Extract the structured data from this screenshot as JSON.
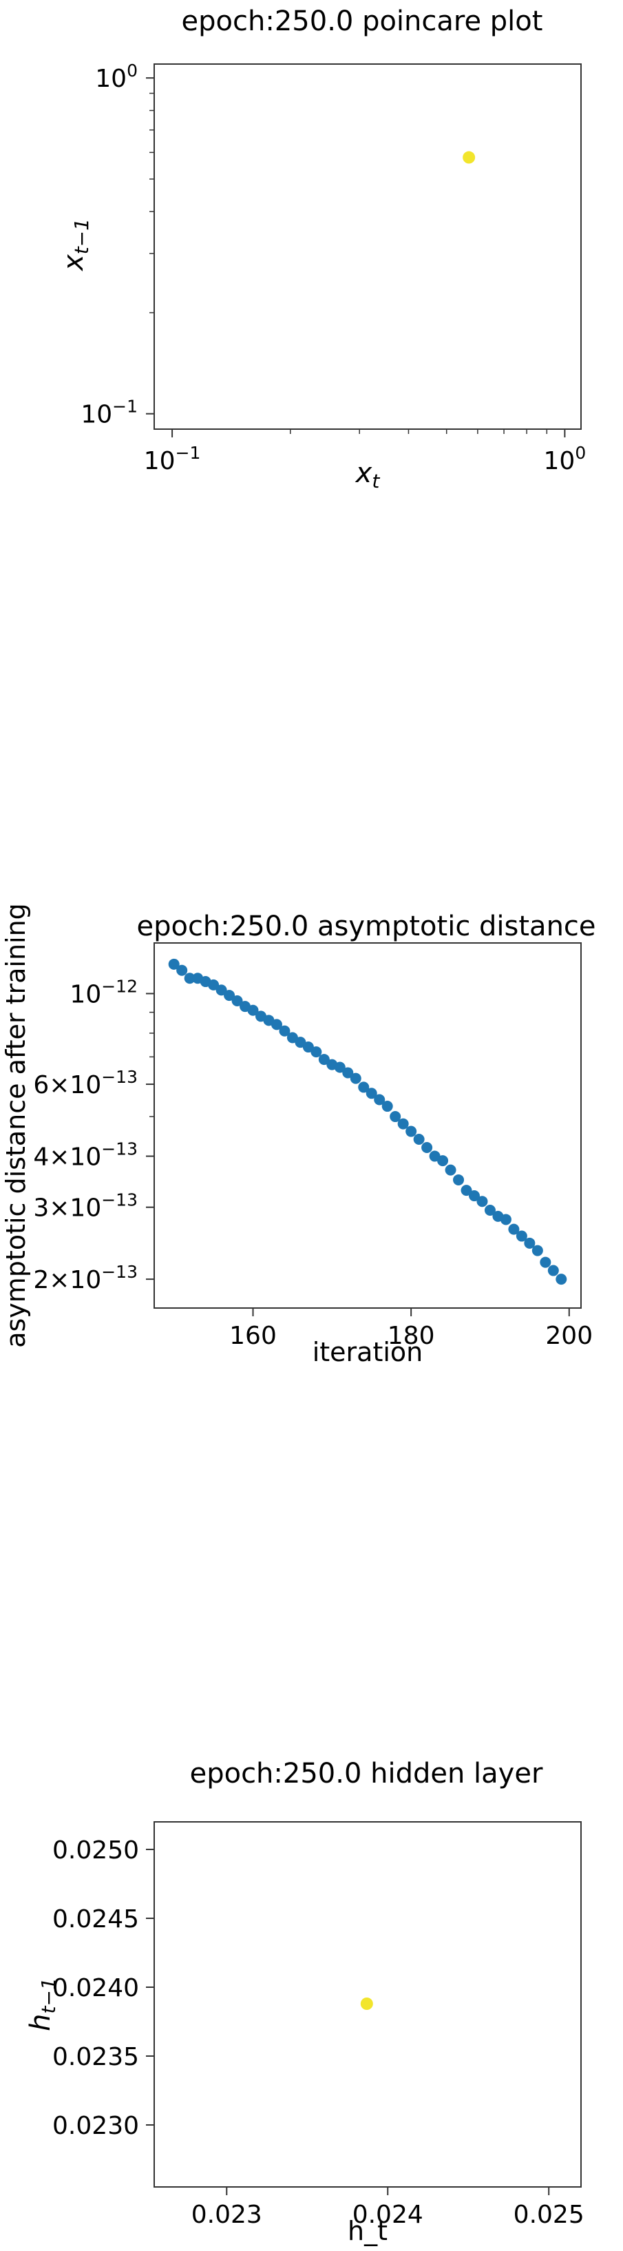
{
  "chart_data": [
    {
      "type": "scatter",
      "title": "epoch:250.0 poincare plot",
      "xlabel": "x_t",
      "ylabel": "x_{t−1}",
      "xscale": "log",
      "yscale": "log",
      "xlim": [
        0.09,
        1.1
      ],
      "ylim": [
        0.09,
        1.1
      ],
      "xticks": [
        {
          "value": 0.1,
          "base": "10",
          "exp": "−1"
        },
        {
          "value": 1.0,
          "base": "10",
          "exp": "0"
        }
      ],
      "yticks": [
        {
          "value": 0.1,
          "base": "10",
          "exp": "−1"
        },
        {
          "value": 1.0,
          "base": "10",
          "exp": "0"
        }
      ],
      "marker_color": "#f2e52c",
      "points": [
        {
          "x": 0.57,
          "y": 0.58
        }
      ]
    },
    {
      "type": "scatter",
      "title": "epoch:250.0 asymptotic distance",
      "xlabel": "iteration",
      "ylabel": "asymptotic distance after training",
      "yscale": "log",
      "xlim": [
        147.5,
        201.5
      ],
      "ylim": [
        1.7e-13,
        1.33e-12
      ],
      "xticks": [
        {
          "value": 160,
          "label": "160"
        },
        {
          "value": 180,
          "label": "180"
        },
        {
          "value": 200,
          "label": "200"
        }
      ],
      "yticks": [
        {
          "value": 1e-12,
          "coef": "",
          "exp": "−12"
        },
        {
          "value": 6e-13,
          "coef": "6×",
          "exp": "−13"
        },
        {
          "value": 4e-13,
          "coef": "4×",
          "exp": "−13"
        },
        {
          "value": 3e-13,
          "coef": "3×",
          "exp": "−13"
        },
        {
          "value": 2e-13,
          "coef": "2×",
          "exp": "−13"
        }
      ],
      "marker_color": "#1f77b4",
      "x": [
        150,
        151,
        152,
        153,
        154,
        155,
        156,
        157,
        158,
        159,
        160,
        161,
        162,
        163,
        164,
        165,
        166,
        167,
        168,
        169,
        170,
        171,
        172,
        173,
        174,
        175,
        176,
        177,
        178,
        179,
        180,
        181,
        182,
        183,
        184,
        185,
        186,
        187,
        188,
        189,
        190,
        191,
        192,
        193,
        194,
        195,
        196,
        197,
        198,
        199
      ],
      "y": [
        1.18e-12,
        1.14e-12,
        1.09e-12,
        1.09e-12,
        1.07e-12,
        1.05e-12,
        1.02e-12,
        9.9e-13,
        9.6e-13,
        9.3e-13,
        9.1e-13,
        8.8e-13,
        8.6e-13,
        8.4e-13,
        8.1e-13,
        7.8e-13,
        7.6e-13,
        7.4e-13,
        7.2e-13,
        6.9e-13,
        6.7e-13,
        6.6e-13,
        6.4e-13,
        6.2e-13,
        5.9e-13,
        5.7e-13,
        5.5e-13,
        5.3e-13,
        5e-13,
        4.8e-13,
        4.6e-13,
        4.4e-13,
        4.2e-13,
        4e-13,
        3.9e-13,
        3.7e-13,
        3.5e-13,
        3.3e-13,
        3.2e-13,
        3.1e-13,
        2.95e-13,
        2.85e-13,
        2.8e-13,
        2.65e-13,
        2.55e-13,
        2.45e-13,
        2.35e-13,
        2.2e-13,
        2.1e-13,
        2e-13
      ]
    },
    {
      "type": "scatter",
      "title": "epoch:250.0 hidden layer",
      "xlabel": "h_t",
      "ylabel": "h_{t−1}",
      "xlim": [
        0.02255,
        0.0252
      ],
      "ylim": [
        0.02255,
        0.0252
      ],
      "xticks": [
        {
          "value": 0.023,
          "label": "0.023"
        },
        {
          "value": 0.024,
          "label": "0.024"
        },
        {
          "value": 0.025,
          "label": "0.025"
        }
      ],
      "yticks": [
        {
          "value": 0.023,
          "label": "0.0230"
        },
        {
          "value": 0.0235,
          "label": "0.0235"
        },
        {
          "value": 0.024,
          "label": "0.0240"
        },
        {
          "value": 0.0245,
          "label": "0.0245"
        },
        {
          "value": 0.025,
          "label": "0.0250"
        }
      ],
      "marker_color": "#f2e52c",
      "points": [
        {
          "x": 0.02387,
          "y": 0.02388
        }
      ]
    }
  ]
}
